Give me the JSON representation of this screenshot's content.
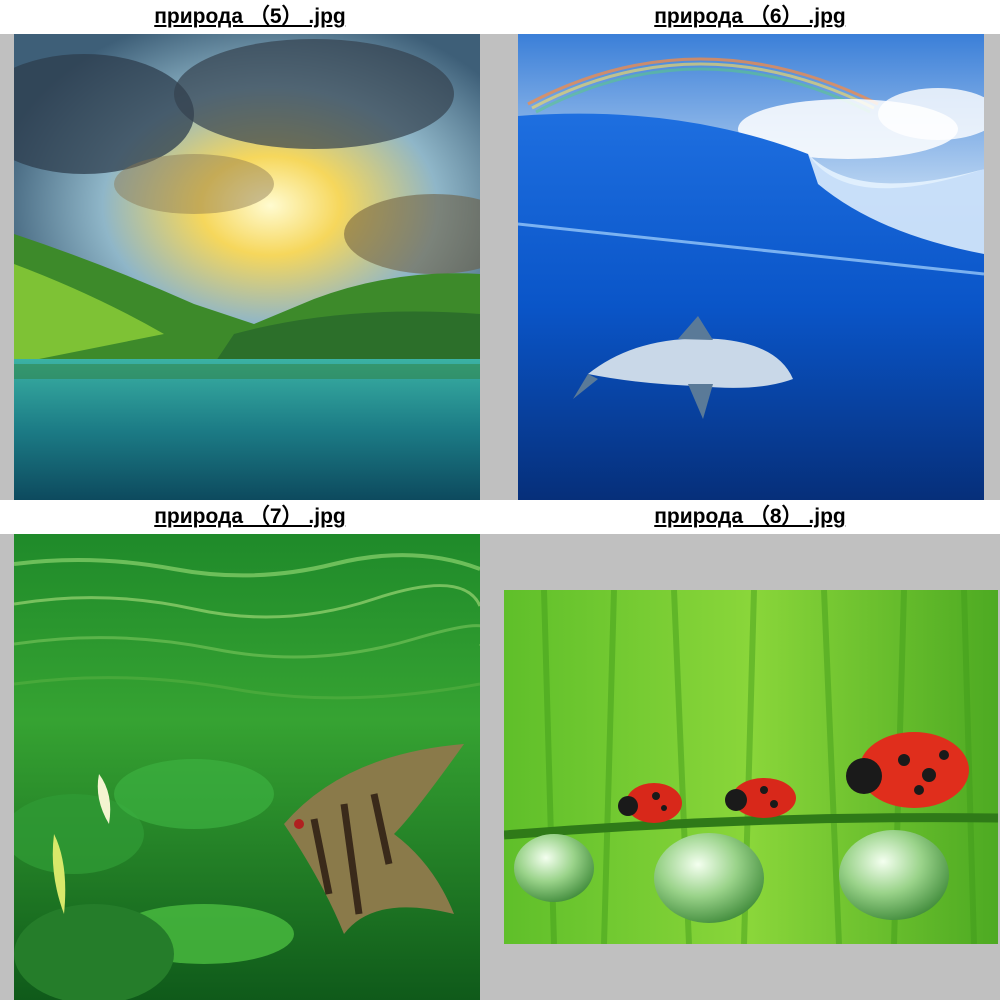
{
  "tiles": [
    {
      "caption": "природа （5） .jpg",
      "image": "lake-sunset-forest"
    },
    {
      "caption": "природа （6） .jpg",
      "image": "shark-under-wave-rainbow"
    },
    {
      "caption": "природа （7） .jpg",
      "image": "angelfish-aquarium-plants"
    },
    {
      "caption": "природа （8） .jpg",
      "image": "ladybugs-on-grass-dewdrops"
    }
  ],
  "colors": {
    "frame": "#c0c0c0",
    "background": "#ffffff"
  }
}
